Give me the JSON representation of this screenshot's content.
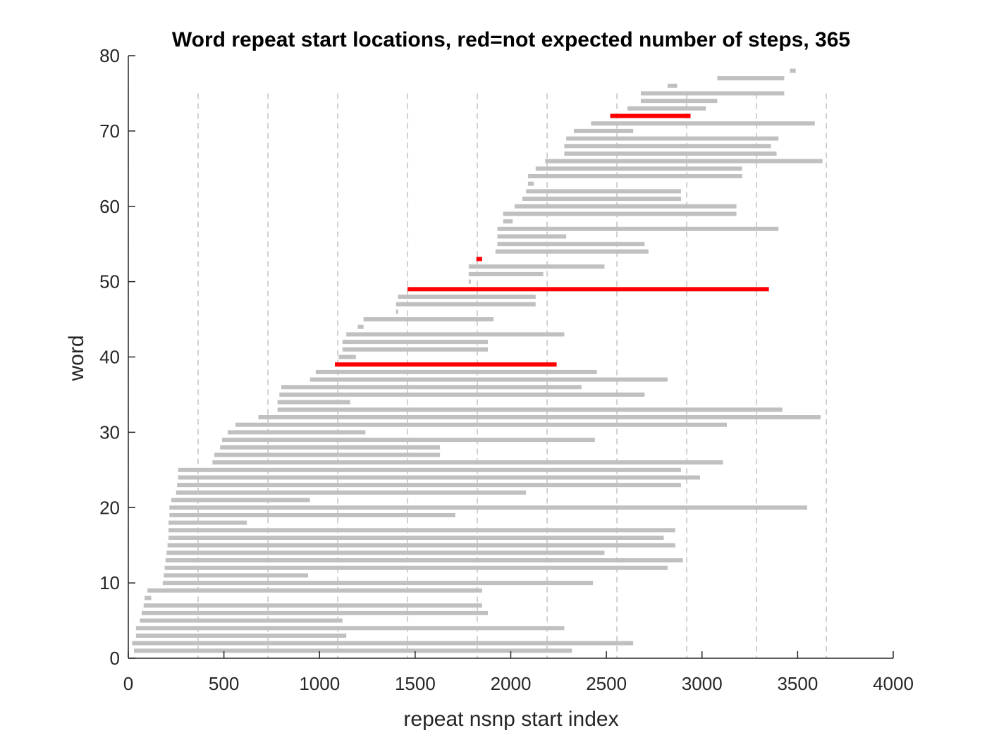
{
  "chart_data": {
    "type": "bar",
    "orientation": "horizontal-range",
    "title": "Word repeat start locations, red=not expected number of steps, 365",
    "xlabel": "repeat nsnp start index",
    "ylabel": "word",
    "xlim": [
      0,
      4000
    ],
    "ylim": [
      0,
      80
    ],
    "xticks": [
      "0",
      "500",
      "1000",
      "1500",
      "2000",
      "2500",
      "3000",
      "3500",
      "4000"
    ],
    "yticks": [
      "0",
      "10",
      "20",
      "30",
      "40",
      "50",
      "60",
      "70",
      "80"
    ],
    "step": 365,
    "vertical_gridlines": [
      0,
      365,
      730,
      1095,
      1460,
      1825,
      2190,
      2555,
      2920,
      3285,
      3650
    ],
    "colors": {
      "normal": "#c0c0c0",
      "flagged": "#ff0000",
      "grid": "#b3b3b3",
      "axis": "#262626"
    },
    "series": [
      {
        "color": "normal",
        "ranges": [
          [
            1,
            30,
            2320
          ],
          [
            2,
            20,
            2640
          ],
          [
            3,
            40,
            1140
          ],
          [
            4,
            40,
            2280
          ],
          [
            5,
            60,
            1120
          ],
          [
            6,
            70,
            1880
          ],
          [
            7,
            80,
            1850
          ],
          [
            8,
            85,
            120
          ],
          [
            9,
            100,
            1850
          ],
          [
            10,
            180,
            2430
          ],
          [
            11,
            185,
            940
          ],
          [
            12,
            190,
            2820
          ],
          [
            13,
            195,
            2900
          ],
          [
            14,
            200,
            2490
          ],
          [
            15,
            205,
            2860
          ],
          [
            16,
            210,
            2800
          ],
          [
            17,
            210,
            2860
          ],
          [
            18,
            210,
            620
          ],
          [
            19,
            215,
            1710
          ],
          [
            20,
            215,
            3550
          ],
          [
            21,
            225,
            950
          ],
          [
            22,
            250,
            2080
          ],
          [
            23,
            255,
            2890
          ],
          [
            24,
            260,
            2990
          ],
          [
            25,
            260,
            2890
          ],
          [
            26,
            440,
            3110
          ],
          [
            27,
            450,
            1630
          ],
          [
            28,
            480,
            1630
          ],
          [
            29,
            490,
            2440
          ],
          [
            30,
            520,
            1240
          ],
          [
            31,
            560,
            3130
          ],
          [
            32,
            680,
            3620
          ],
          [
            33,
            780,
            3420
          ],
          [
            34,
            780,
            1160
          ],
          [
            35,
            790,
            2700
          ],
          [
            36,
            800,
            2370
          ],
          [
            37,
            950,
            2820
          ],
          [
            38,
            980,
            2450
          ],
          [
            40,
            1100,
            1190
          ],
          [
            41,
            1120,
            1880
          ],
          [
            42,
            1120,
            1880
          ],
          [
            43,
            1140,
            2280
          ],
          [
            44,
            1200,
            1230
          ],
          [
            45,
            1230,
            1910
          ],
          [
            46,
            1400,
            1410
          ],
          [
            47,
            1400,
            2130
          ],
          [
            48,
            1410,
            2130
          ],
          [
            50,
            1780,
            1780
          ],
          [
            51,
            1780,
            2170
          ],
          [
            52,
            1780,
            2490
          ],
          [
            54,
            1920,
            2720
          ],
          [
            55,
            1930,
            2700
          ],
          [
            56,
            1930,
            2290
          ],
          [
            57,
            1930,
            3400
          ],
          [
            58,
            1960,
            2010
          ],
          [
            59,
            1960,
            3180
          ],
          [
            60,
            2020,
            3180
          ],
          [
            61,
            2060,
            2890
          ],
          [
            62,
            2080,
            2890
          ],
          [
            63,
            2090,
            2120
          ],
          [
            64,
            2090,
            3210
          ],
          [
            65,
            2130,
            3210
          ],
          [
            66,
            2180,
            3630
          ],
          [
            67,
            2280,
            3390
          ],
          [
            68,
            2280,
            3360
          ],
          [
            69,
            2290,
            3400
          ],
          [
            70,
            2330,
            2640
          ],
          [
            71,
            2420,
            3590
          ],
          [
            73,
            2610,
            3020
          ],
          [
            74,
            2680,
            3080
          ],
          [
            75,
            2680,
            3430
          ],
          [
            76,
            2820,
            2870
          ],
          [
            77,
            3080,
            3430
          ],
          [
            78,
            3460,
            3490
          ]
        ]
      },
      {
        "color": "flagged",
        "ranges": [
          [
            39,
            1080,
            2240
          ],
          [
            49,
            1460,
            3350
          ],
          [
            53,
            1820,
            1850
          ],
          [
            72,
            2520,
            2940
          ]
        ]
      }
    ]
  }
}
